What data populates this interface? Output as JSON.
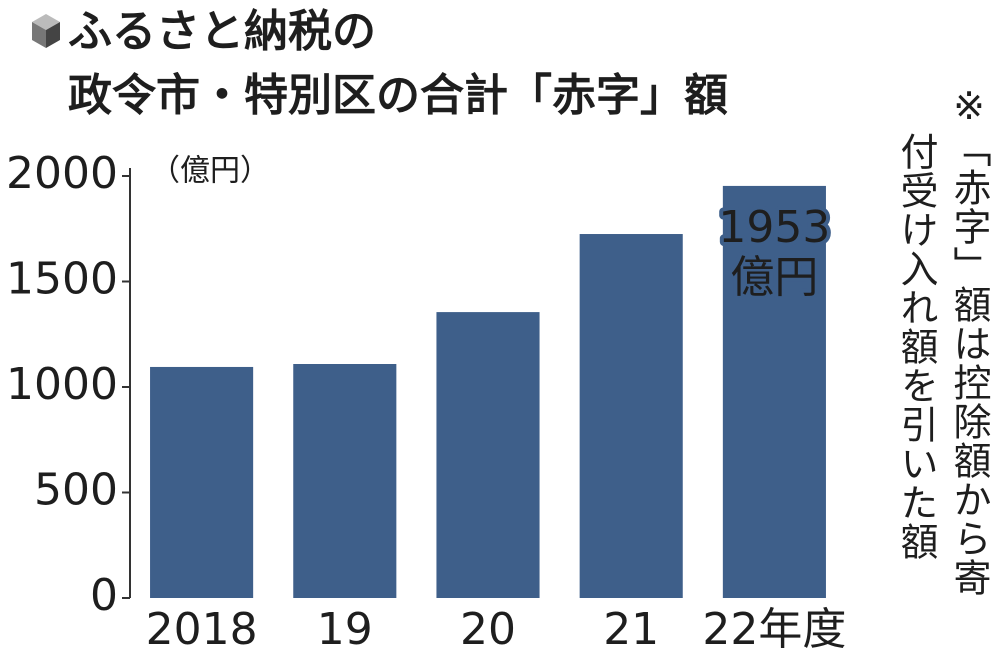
{
  "chart_data": {
    "type": "bar",
    "title_lines": [
      "ふるさと納税の",
      "政令市・特別区の合計「赤字」額"
    ],
    "unit_label": "（億円）",
    "note_columns": [
      "※「赤字」額は控除額から寄",
      "付受け入れ額を引いた額"
    ],
    "categories": [
      "2018",
      "19",
      "20",
      "21",
      "22年度"
    ],
    "values": [
      1095,
      1109,
      1355,
      1725,
      1953
    ],
    "value_labels": [
      null,
      null,
      null,
      null,
      "1953"
    ],
    "value_label_unit": "億円",
    "color": "#3e5f8a",
    "ylim": [
      0,
      2000
    ],
    "yticks": [
      0,
      500,
      1000,
      1500,
      2000
    ],
    "grid": false
  }
}
